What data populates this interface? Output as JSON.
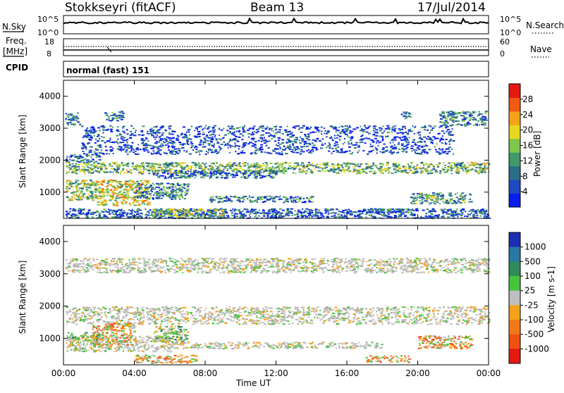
{
  "header": {
    "station": "Stokkseyri (fitACF)",
    "beam": "Beam 13",
    "date": "17/Jul/2014"
  },
  "strip_labels": {
    "nsky": "N.Sky",
    "nsky_top": "10^5",
    "nsky_bottom": "10^0",
    "nsearch": "N.Search",
    "nsearch_top": "10^5",
    "nsearch_bottom": "10^0",
    "freq_1": "Freq.",
    "freq_2": "[MHz]",
    "freq_top": "18",
    "freq_bottom": "8",
    "nave": "Nave",
    "nave_top": "60",
    "nave_bottom": "0",
    "cpid": "CPID",
    "cpid_value": "normal (fast) 151"
  },
  "chart_data": [
    {
      "type": "heatmap",
      "panel": "power",
      "ylabel": "Slant Range [km]",
      "xlim": [
        0,
        24
      ],
      "ylim": [
        180,
        4500
      ],
      "yticks": [
        1000,
        2000,
        3000,
        4000
      ],
      "colorbar": {
        "label": "Power [dB]",
        "range": [
          0,
          32
        ],
        "ticks": [
          "4",
          "8",
          "12",
          "16",
          "20",
          "24",
          "28"
        ],
        "colors": [
          "#0a1ef0",
          "#1f49c2",
          "#2a6e88",
          "#3f9a6a",
          "#7fc64a",
          "#e6d81e",
          "#f4a21a",
          "#f05a14",
          "#e41a12"
        ]
      },
      "scatter_regions": [
        {
          "t0": 0.1,
          "t1": 0.9,
          "r0": 3100,
          "r1": 3500,
          "level": 0.25
        },
        {
          "t0": 2.3,
          "t1": 3.3,
          "r0": 3250,
          "r1": 3550,
          "level": 0.25
        },
        {
          "t0": 19.0,
          "t1": 19.5,
          "r0": 3300,
          "r1": 3550,
          "level": 0.2
        },
        {
          "t0": 21.2,
          "t1": 23.8,
          "r0": 3100,
          "r1": 3550,
          "level": 0.3
        },
        {
          "t0": 0.1,
          "t1": 2.0,
          "r0": 1950,
          "r1": 2200,
          "level": 0.25
        },
        {
          "t0": 0.1,
          "t1": 24.0,
          "r0": 1600,
          "r1": 1950,
          "level": 0.45
        },
        {
          "t0": 5.0,
          "t1": 12.0,
          "r0": 1450,
          "r1": 1700,
          "level": 0.25
        },
        {
          "t0": 0.1,
          "t1": 1.8,
          "r0": 750,
          "r1": 1400,
          "level": 0.5
        },
        {
          "t0": 1.8,
          "t1": 4.8,
          "r0": 600,
          "r1": 1400,
          "level": 0.6
        },
        {
          "t0": 4.0,
          "t1": 7.0,
          "r0": 800,
          "r1": 1300,
          "level": 0.3
        },
        {
          "t0": 8.2,
          "t1": 14.0,
          "r0": 700,
          "r1": 900,
          "level": 0.3
        },
        {
          "t0": 19.5,
          "t1": 23.0,
          "r0": 650,
          "r1": 1000,
          "level": 0.35
        },
        {
          "t0": 0.1,
          "t1": 24.0,
          "r0": 200,
          "r1": 500,
          "level": 0.2
        },
        {
          "t0": 5.0,
          "t1": 9.0,
          "r0": 250,
          "r1": 500,
          "level": 0.5
        },
        {
          "t0": 17.0,
          "t1": 19.5,
          "r0": 380,
          "r1": 500,
          "level": 0.3
        },
        {
          "t0": 1.0,
          "t1": 22.0,
          "r0": 2200,
          "r1": 3100,
          "level": 0.15
        }
      ]
    },
    {
      "type": "heatmap",
      "panel": "velocity",
      "ylabel": "Slant Range [km]",
      "xlabel": "Time UT",
      "xlim": [
        0,
        24
      ],
      "ylim": [
        180,
        4500
      ],
      "xticks": [
        "00:00",
        "04:00",
        "08:00",
        "12:00",
        "16:00",
        "20:00",
        "00:00"
      ],
      "yticks": [
        1000,
        2000,
        3000,
        4000
      ],
      "colorbar": {
        "label": "Velocity [m s-1]",
        "ticks": [
          "1000",
          "500",
          "100",
          "25",
          "-25",
          "-100",
          "-500",
          "-1000"
        ],
        "colors": [
          "#1c2fb4",
          "#2a78a6",
          "#2f8c5a",
          "#46c43c",
          "#bfbfbf",
          "#f4a21a",
          "#f07818",
          "#f05014",
          "#e41a12"
        ]
      },
      "scatter_regions": [
        {
          "t0": 0.1,
          "t1": 24.0,
          "r0": 1450,
          "r1": 2000,
          "tone": "grey"
        },
        {
          "t0": 0.1,
          "t1": 24.0,
          "r0": 3050,
          "r1": 3500,
          "tone": "grey"
        },
        {
          "t0": 0.1,
          "t1": 6.0,
          "r0": 600,
          "r1": 1100,
          "tone": "grey"
        },
        {
          "t0": 1.6,
          "t1": 4.0,
          "r0": 800,
          "r1": 1500,
          "tone": "orange"
        },
        {
          "t0": 0.2,
          "t1": 2.0,
          "r0": 900,
          "r1": 1200,
          "tone": "green"
        },
        {
          "t0": 5.0,
          "t1": 7.0,
          "r0": 900,
          "r1": 1400,
          "tone": "green"
        },
        {
          "t0": 4.0,
          "t1": 7.5,
          "r0": 250,
          "r1": 500,
          "tone": "orange"
        },
        {
          "t0": 17.0,
          "t1": 19.5,
          "r0": 280,
          "r1": 480,
          "tone": "orange"
        },
        {
          "t0": 20.0,
          "t1": 23.0,
          "r0": 700,
          "r1": 1100,
          "tone": "orange"
        },
        {
          "t0": 6.0,
          "t1": 18.0,
          "r0": 700,
          "r1": 900,
          "tone": "grey"
        }
      ]
    }
  ]
}
